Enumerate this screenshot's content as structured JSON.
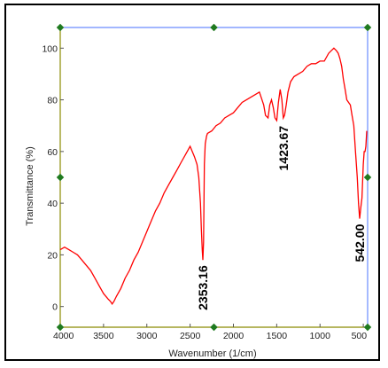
{
  "chart_data": {
    "type": "line",
    "title": "",
    "xlabel": "Wavenumber (1/cm)",
    "ylabel": "Transmittance (%)",
    "xlim": [
      4000,
      450
    ],
    "ylim": [
      -8,
      108
    ],
    "x_reversed": true,
    "grid": false,
    "x_ticks": [
      4000,
      3500,
      3000,
      2500,
      2000,
      1500,
      1000,
      500
    ],
    "x_tick_labels": [
      "4000",
      "3500",
      "3000",
      "2500",
      "2000",
      "1500",
      "1000",
      "500"
    ],
    "y_ticks": [
      0,
      20,
      40,
      60,
      80,
      100
    ],
    "y_tick_labels": [
      "0",
      "20",
      "40",
      "60",
      "80",
      "100"
    ],
    "colors": {
      "series": "#ff0000",
      "frame_top_right": "#6a8cff",
      "frame_bottom_left": "#8b8b00",
      "handle": "#1f7a1f"
    },
    "series": [
      {
        "x": [
          4000,
          3950,
          3900,
          3850,
          3800,
          3750,
          3700,
          3650,
          3600,
          3550,
          3500,
          3450,
          3420,
          3400,
          3380,
          3350,
          3300,
          3250,
          3200,
          3150,
          3100,
          3050,
          3000,
          2950,
          2900,
          2850,
          2800,
          2750,
          2700,
          2650,
          2600,
          2550,
          2500,
          2450,
          2420,
          2400,
          2380,
          2370,
          2360,
          2353,
          2345,
          2335,
          2325,
          2310,
          2300,
          2250,
          2200,
          2150,
          2100,
          2050,
          2000,
          1950,
          1900,
          1850,
          1800,
          1750,
          1700,
          1680,
          1650,
          1630,
          1600,
          1580,
          1560,
          1540,
          1520,
          1500,
          1480,
          1460,
          1440,
          1424,
          1410,
          1390,
          1370,
          1340,
          1300,
          1250,
          1200,
          1150,
          1100,
          1050,
          1000,
          950,
          900,
          870,
          840,
          810,
          790,
          770,
          750,
          730,
          710,
          690,
          670,
          650,
          630,
          610,
          590,
          570,
          555,
          542,
          530,
          515,
          500,
          490,
          480,
          470,
          460
        ],
        "values": [
          22,
          23,
          22,
          21,
          20,
          18,
          16,
          14,
          11,
          8,
          5,
          3,
          2,
          1,
          2,
          4,
          7,
          11,
          14,
          18,
          21,
          25,
          29,
          33,
          37,
          40,
          44,
          47,
          50,
          53,
          56,
          59,
          62,
          58,
          55,
          50,
          40,
          30,
          22,
          18,
          25,
          55,
          63,
          66,
          67,
          68,
          70,
          71,
          73,
          74,
          75,
          77,
          79,
          80,
          81,
          82,
          83,
          81,
          78,
          74,
          73,
          78,
          80,
          77,
          73,
          72,
          79,
          84,
          80,
          73,
          74,
          78,
          83,
          87,
          89,
          90,
          91,
          93,
          94,
          94,
          95,
          95,
          98,
          99,
          100,
          99,
          98,
          96,
          93,
          88,
          84,
          80,
          79,
          78,
          74,
          70,
          60,
          50,
          40,
          34,
          38,
          42,
          55,
          60,
          60,
          62,
          68
        ]
      }
    ],
    "annotations": [
      {
        "label": "2353.16",
        "x": 2353.16,
        "y": 18
      },
      {
        "label": "1423.67",
        "x": 1423.67,
        "y": 72
      },
      {
        "label": "542.00",
        "x": 542.0,
        "y": 34
      }
    ]
  }
}
